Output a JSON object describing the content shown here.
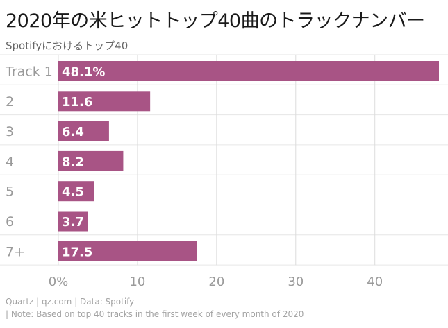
{
  "title": "2020年の米ヒットトップ40曲のトラックナンバー",
  "subtitle": "Spotifyにおけるトップ40",
  "chart_data": {
    "type": "bar",
    "orientation": "horizontal",
    "categories": [
      "Track 1",
      "2",
      "3",
      "4",
      "5",
      "6",
      "7+"
    ],
    "values": [
      48.1,
      11.6,
      6.4,
      8.2,
      4.5,
      3.7,
      17.5
    ],
    "value_labels": [
      "48.1%",
      "11.6",
      "6.4",
      "8.2",
      "4.5",
      "3.7",
      "17.5"
    ],
    "xlim": [
      0,
      48.1
    ],
    "x_ticks": [
      0,
      10,
      20,
      30,
      40
    ],
    "x_tick_labels": [
      "0%",
      "10",
      "20",
      "30",
      "40"
    ],
    "bar_color": "#a85485",
    "grid": true
  },
  "footer": {
    "source": "Quartz | qz.com | Data: Spotify",
    "note": "| Note: Based on top 40 tracks in the first week of every month of 2020"
  }
}
